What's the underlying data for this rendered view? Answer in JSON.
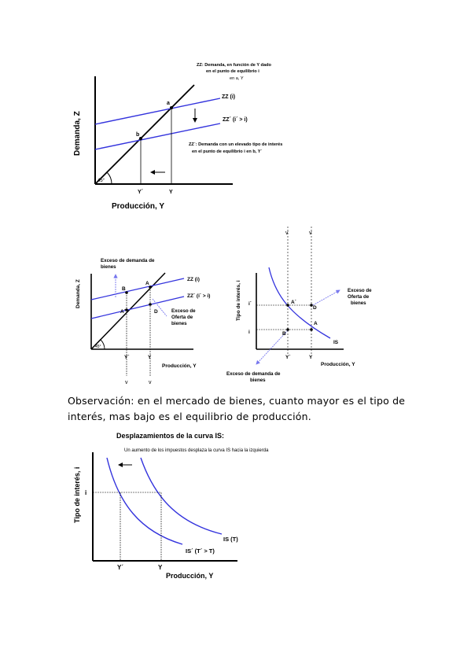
{
  "fig1": {
    "ylabel": "Demanda, Z",
    "xlabel": "Producción, Y",
    "zz_label": "ZZ (i)",
    "zzp_label": "ZZ´ (i´ > i)",
    "note_top": [
      "ZZ: Demanda, en función de Y dado",
      "en el punto de equilibrio i",
      "en a, Y"
    ],
    "note_bottom": [
      "ZZ´: Demanda con un elevado tipo de interés",
      "en el punto de equilibrio i en b, Y´"
    ],
    "point_a": "a",
    "point_b": "b",
    "angle": "45°",
    "tick_yp": "Y´",
    "tick_y": "Y"
  },
  "fig2": {
    "ylabel": "Demanda, Z",
    "xlabel": "Producción, Y",
    "zz_label": "ZZ (i)",
    "zzp_label": "ZZ´ (i´ > i)",
    "exceso_demanda": [
      "Exceso de demanda de",
      "bienes"
    ],
    "exceso_oferta": [
      "Exceso de",
      "Oferta de",
      "bienes"
    ],
    "point_b": "B",
    "point_a": "A",
    "point_ap": "A´",
    "point_d": "D",
    "angle": "45°",
    "tick_yp": "Y´",
    "tick_y": "Y",
    "arrow_v1": "v",
    "arrow_v2": "v"
  },
  "fig3": {
    "ylabel": "Tipo de interés, i",
    "xlabel": "Producción, Y",
    "tick_ip": "i´",
    "tick_i": "i",
    "tick_yp": "Y´",
    "tick_y": "Y",
    "point_ap": "A´",
    "point_d": "D",
    "point_a": "A",
    "point_b": "B",
    "curve_label": "IS",
    "exceso_oferta": [
      "Exceso de",
      "Oferta de",
      "bienes"
    ],
    "exceso_demanda": [
      "Exceso de demanda de",
      "bienes"
    ]
  },
  "observation": "Observación: en el mercado de bienes, cuanto mayor es el tipo de interés, mas bajo es el equilibrio de producción.",
  "fig4": {
    "title": "Desplazamientos de la curva IS:",
    "subtitle": "Un aumento de los impuestos desplaza la curva IS hacia la izquierda",
    "ylabel": "Tipo de interés, i",
    "xlabel": "Producción, Y",
    "tick_i": "i",
    "tick_yp": "Y´",
    "tick_y": "Y",
    "is_label": "IS (T)",
    "isp_label": "IS´ (T´ > T)"
  },
  "colors": {
    "curve": "#3333dd",
    "axis": "#000000",
    "arrow": "#7777ee"
  }
}
